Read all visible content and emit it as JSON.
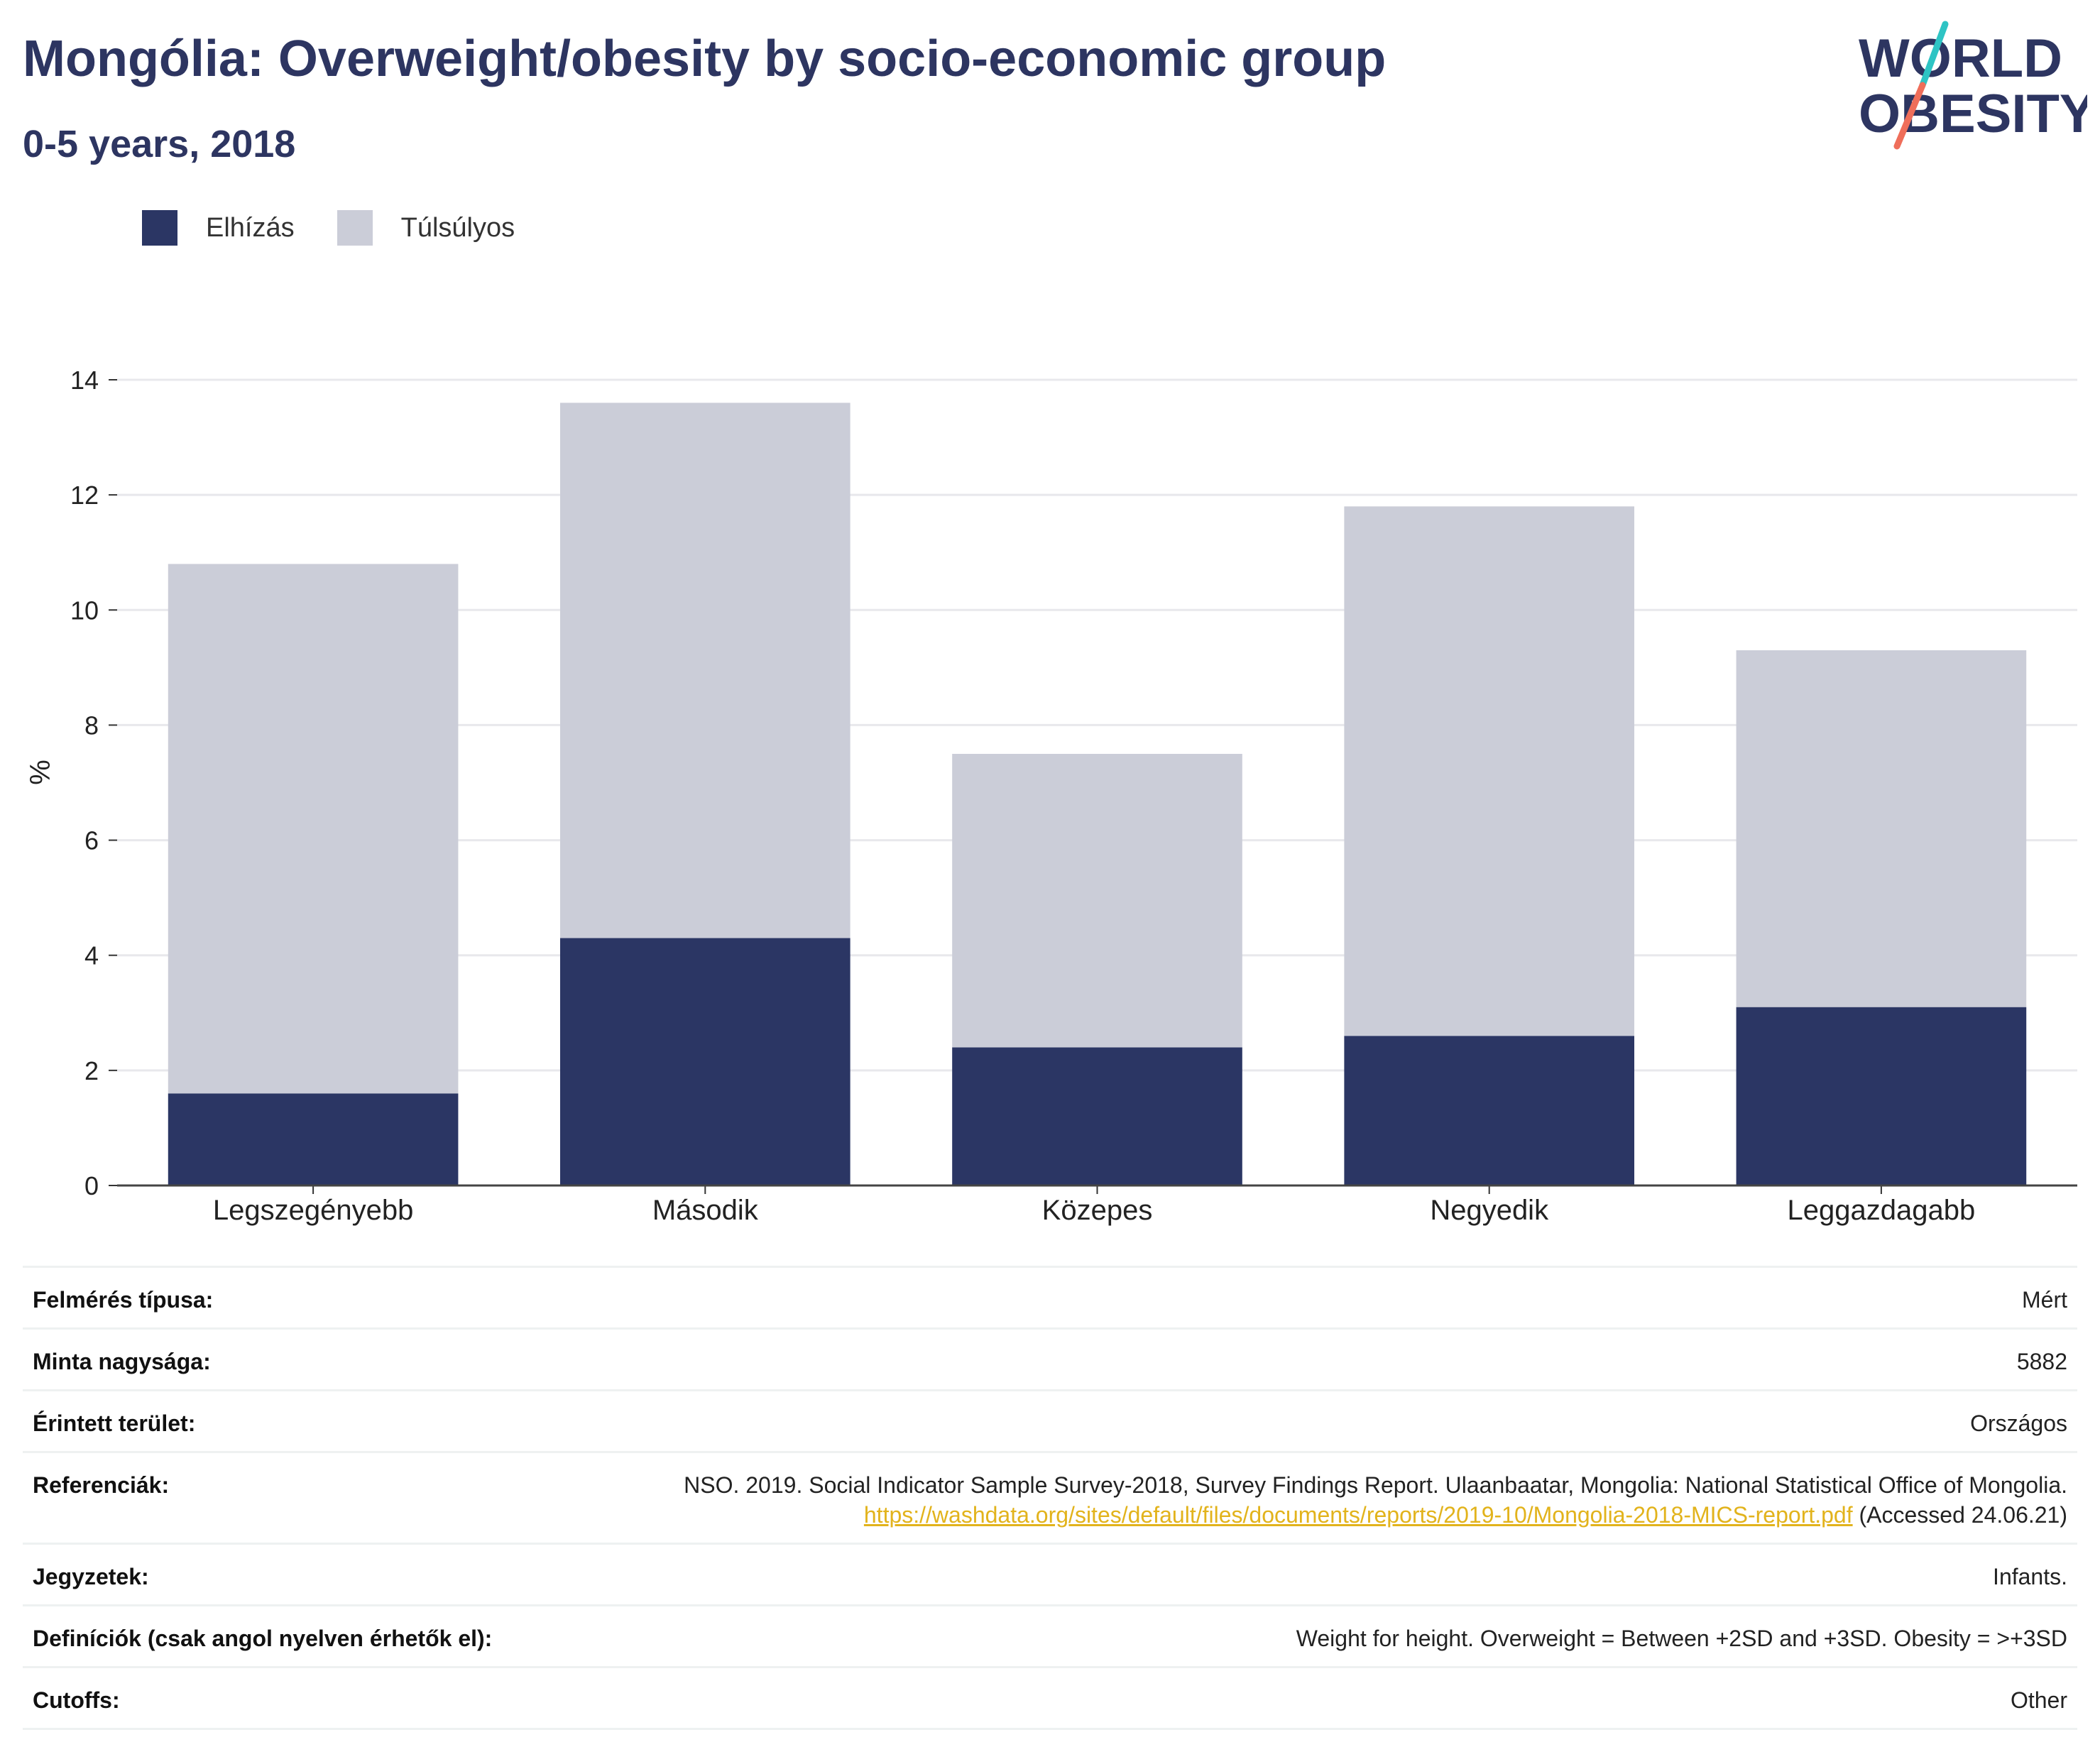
{
  "header": {
    "title": "Mongólia: Overweight/obesity by socio-economic group",
    "subtitle": "0-5 years, 2018"
  },
  "logo": {
    "line1": "WORLD",
    "line2": "OBESITY",
    "colors": {
      "text": "#2d3561",
      "slash_top": "#2ec4c4",
      "slash_bottom": "#ef6e5a"
    }
  },
  "legend": {
    "items": [
      {
        "label": "Elhízás",
        "color": "#2b3664"
      },
      {
        "label": "Túlsúlyos",
        "color": "#cbcdd8"
      }
    ]
  },
  "chart_data": {
    "type": "bar",
    "stacked": true,
    "categories": [
      "Legszegényebb",
      "Második",
      "Közepes",
      "Negyedik",
      "Leggazdagabb"
    ],
    "series": [
      {
        "name": "Elhízás",
        "values": [
          1.6,
          4.3,
          2.4,
          2.6,
          3.1
        ],
        "color": "#2b3664"
      },
      {
        "name": "Túlsúlyos",
        "values": [
          9.2,
          9.3,
          5.1,
          9.2,
          6.2
        ],
        "color": "#cbcdd8"
      }
    ],
    "ylabel": "%",
    "ylim": [
      0,
      14
    ],
    "yticks": [
      0,
      2,
      4,
      6,
      8,
      10,
      12,
      14
    ],
    "grid": true,
    "legend_position": "top-left"
  },
  "info": {
    "rows": [
      {
        "label": "Felmérés típusa:",
        "value": "Mért"
      },
      {
        "label": "Minta nagysága:",
        "value": "5882"
      },
      {
        "label": "Érintett terület:",
        "value": "Országos"
      },
      {
        "label": "Referenciák:",
        "value": "NSO. 2019. Social Indicator Sample Survey-2018, Survey Findings Report. Ulaanbaatar, Mongolia: National Statistical Office of Mongolia.",
        "link": "https://washdata.org/sites/default/files/documents/reports/2019-10/Mongolia-2018-MICS-report.pdf",
        "suffix": "(Accessed 24.06.21)"
      },
      {
        "label": "Jegyzetek:",
        "value": "Infants."
      },
      {
        "label": "Definíciók (csak angol nyelven érhetők el):",
        "value": "Weight for height. Overweight = Between +2SD and +3SD. Obesity = >+3SD"
      },
      {
        "label": "Cutoffs:",
        "value": "Other"
      }
    ]
  }
}
